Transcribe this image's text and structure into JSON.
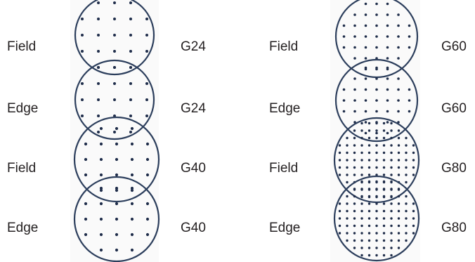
{
  "colors": {
    "ring": "#2c3e5c",
    "dots": "#1f2d4a",
    "text": "#231f20",
    "backdrop": "#fafafa"
  },
  "left_column": {
    "rows": [
      {
        "pattern_label": "Field",
        "grid_label": "G24"
      },
      {
        "pattern_label": "Edge",
        "grid_label": "G24"
      },
      {
        "pattern_label": "Field",
        "grid_label": "G40"
      },
      {
        "pattern_label": "Edge",
        "grid_label": "G40"
      }
    ]
  },
  "right_column": {
    "rows": [
      {
        "pattern_label": "Field",
        "grid_label": "G60"
      },
      {
        "pattern_label": "Edge",
        "grid_label": "G60"
      },
      {
        "pattern_label": "Field",
        "grid_label": "G80"
      },
      {
        "pattern_label": "Edge",
        "grid_label": "G80"
      }
    ]
  }
}
